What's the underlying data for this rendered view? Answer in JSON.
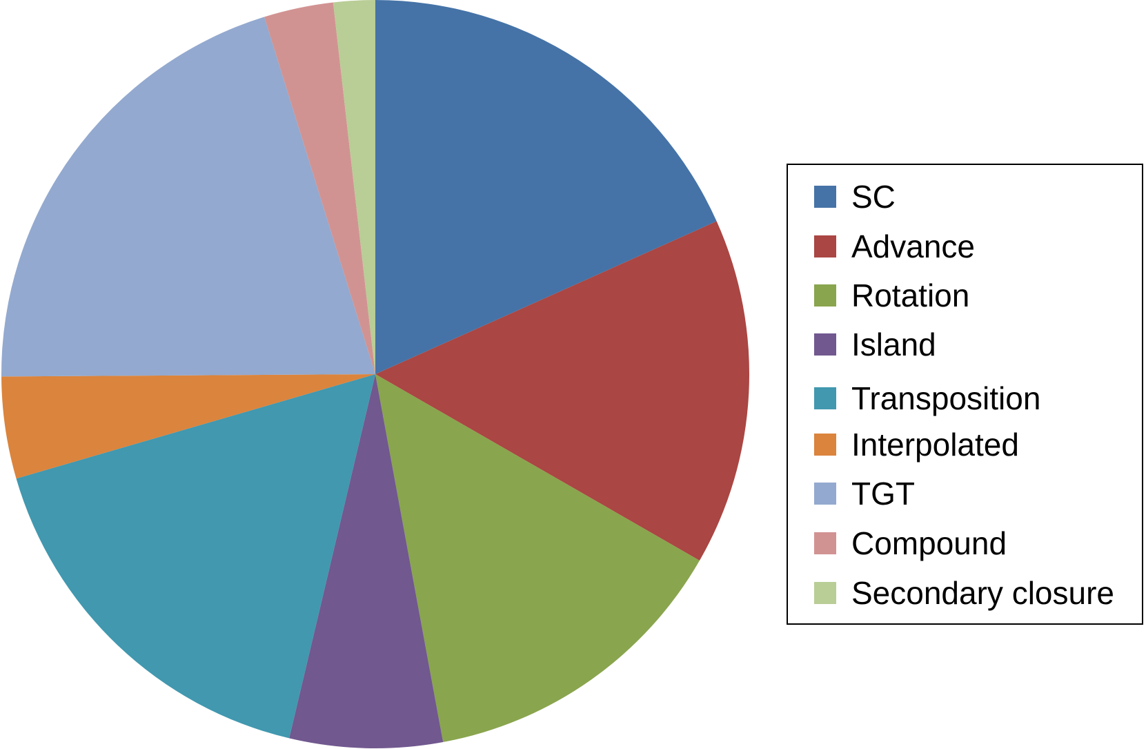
{
  "chart_data": {
    "type": "pie",
    "title": "",
    "legend_position": "right",
    "start_angle_deg": 0,
    "direction": "clockwise",
    "slices": [
      {
        "label": "SC",
        "value": 18.3,
        "color": "#4573A7"
      },
      {
        "label": "Advance",
        "value": 15.0,
        "color": "#AA4643"
      },
      {
        "label": "Rotation",
        "value": 13.8,
        "color": "#89A54E"
      },
      {
        "label": "Island",
        "value": 6.6,
        "color": "#71588F"
      },
      {
        "label": "Transposition",
        "value": 16.8,
        "color": "#4198AF"
      },
      {
        "label": "Interpolated",
        "value": 4.4,
        "color": "#DB843D"
      },
      {
        "label": "TGT",
        "value": 20.3,
        "color": "#93A9CF"
      },
      {
        "label": "Compound",
        "value": 3.0,
        "color": "#D19392"
      },
      {
        "label": "Secondary closure",
        "value": 1.8,
        "color": "#B9CD96"
      }
    ]
  }
}
